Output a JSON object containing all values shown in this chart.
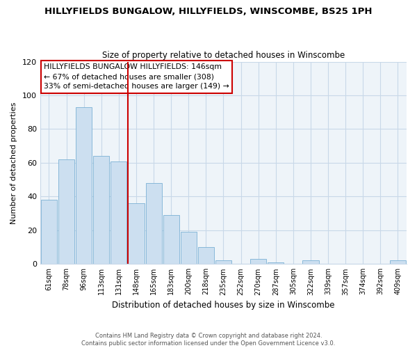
{
  "title": "HILLYFIELDS BUNGALOW, HILLYFIELDS, WINSCOMBE, BS25 1PH",
  "subtitle": "Size of property relative to detached houses in Winscombe",
  "xlabel": "Distribution of detached houses by size in Winscombe",
  "ylabel": "Number of detached properties",
  "bar_labels": [
    "61sqm",
    "78sqm",
    "96sqm",
    "113sqm",
    "131sqm",
    "148sqm",
    "165sqm",
    "183sqm",
    "200sqm",
    "218sqm",
    "235sqm",
    "252sqm",
    "270sqm",
    "287sqm",
    "305sqm",
    "322sqm",
    "339sqm",
    "357sqm",
    "374sqm",
    "392sqm",
    "409sqm"
  ],
  "bar_values": [
    38,
    62,
    93,
    64,
    61,
    36,
    48,
    29,
    19,
    10,
    2,
    0,
    3,
    1,
    0,
    2,
    0,
    0,
    0,
    0,
    2
  ],
  "bar_color": "#ccdff0",
  "bar_edge_color": "#7ab0d4",
  "highlight_index": 5,
  "highlight_line_color": "#cc0000",
  "ylim": [
    0,
    120
  ],
  "yticks": [
    0,
    20,
    40,
    60,
    80,
    100,
    120
  ],
  "annotation_line1": "HILLYFIELDS BUNGALOW HILLYFIELDS: 146sqm",
  "annotation_line2": "← 67% of detached houses are smaller (308)",
  "annotation_line3": "33% of semi-detached houses are larger (149) →",
  "annotation_box_color": "#ffffff",
  "annotation_box_edge_color": "#cc0000",
  "footer_line1": "Contains HM Land Registry data © Crown copyright and database right 2024.",
  "footer_line2": "Contains public sector information licensed under the Open Government Licence v3.0.",
  "plot_bg_color": "#eef4f9",
  "background_color": "#ffffff",
  "grid_color": "#c8d8e8"
}
